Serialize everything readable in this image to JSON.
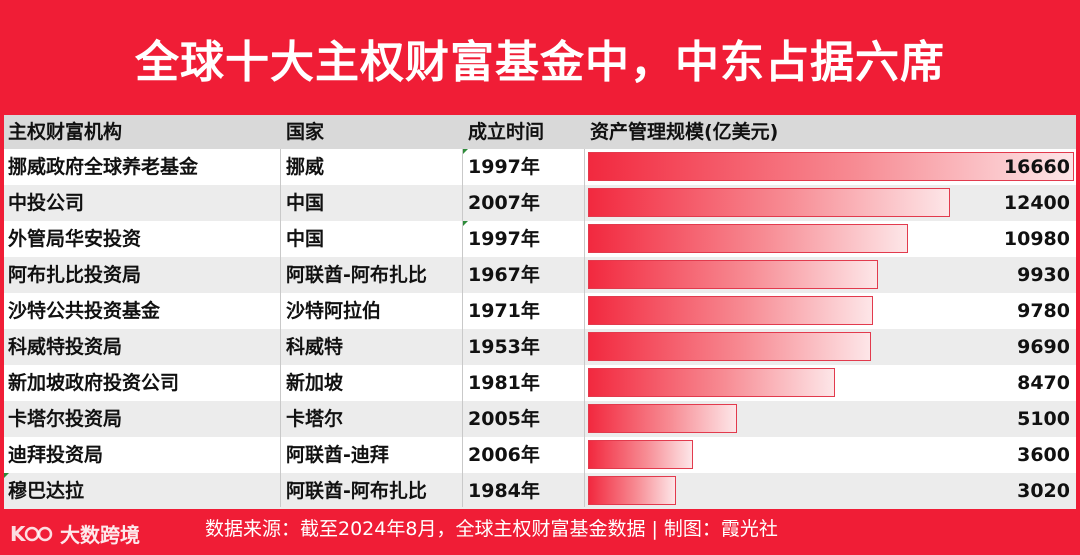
{
  "title": "全球十大主权财富基金中，中东占据六席",
  "colors": {
    "accent": "#f01d36",
    "bar_start": "#f2293f",
    "bar_end": "#fde6e8"
  },
  "headers": {
    "institution": "主权财富机构",
    "country": "国家",
    "founded": "成立时间",
    "aum": "资产管理规模(亿美元)"
  },
  "rows": [
    {
      "institution": "挪威政府全球养老基金",
      "country": "挪威",
      "founded": "1997年",
      "aum": "16660"
    },
    {
      "institution": "中投公司",
      "country": "中国",
      "founded": "2007年",
      "aum": "12400"
    },
    {
      "institution": "外管局华安投资",
      "country": "中国",
      "founded": "1997年",
      "aum": "10980"
    },
    {
      "institution": "阿布扎比投资局",
      "country": "阿联酋-阿布扎比",
      "founded": "1967年",
      "aum": "9930"
    },
    {
      "institution": "沙特公共投资基金",
      "country": "沙特阿拉伯",
      "founded": "1971年",
      "aum": "9780"
    },
    {
      "institution": "科威特投资局",
      "country": "科威特",
      "founded": "1953年",
      "aum": "9690"
    },
    {
      "institution": "新加坡政府投资公司",
      "country": "新加坡",
      "founded": "1981年",
      "aum": "8470"
    },
    {
      "institution": "卡塔尔投资局",
      "country": "卡塔尔",
      "founded": "2005年",
      "aum": "5100"
    },
    {
      "institution": "迪拜投资局",
      "country": "阿联酋-迪拜",
      "founded": "2006年",
      "aum": "3600"
    },
    {
      "institution": "穆巴达拉",
      "country": "阿联酋-阿布扎比",
      "founded": "1984年",
      "aum": "3020"
    }
  ],
  "chart_data": {
    "type": "bar",
    "orientation": "horizontal",
    "categories": [
      "挪威政府全球养老基金",
      "中投公司",
      "外管局华安投资",
      "阿布扎比投资局",
      "沙特公共投资基金",
      "科威特投资局",
      "新加坡政府投资公司",
      "卡塔尔投资局",
      "迪拜投资局",
      "穆巴达拉"
    ],
    "values": [
      16660,
      12400,
      10980,
      9930,
      9780,
      9690,
      8470,
      5100,
      3600,
      3020
    ],
    "title": "全球十大主权财富基金中，中东占据六席",
    "xlabel": "资产管理规模(亿美元)",
    "xlim": [
      0,
      16660
    ],
    "grid": false
  },
  "footer": {
    "brand": "大数跨境",
    "source": "数据来源：截至2024年8月，全球主权财富基金数据 | 制图：霞光社"
  }
}
